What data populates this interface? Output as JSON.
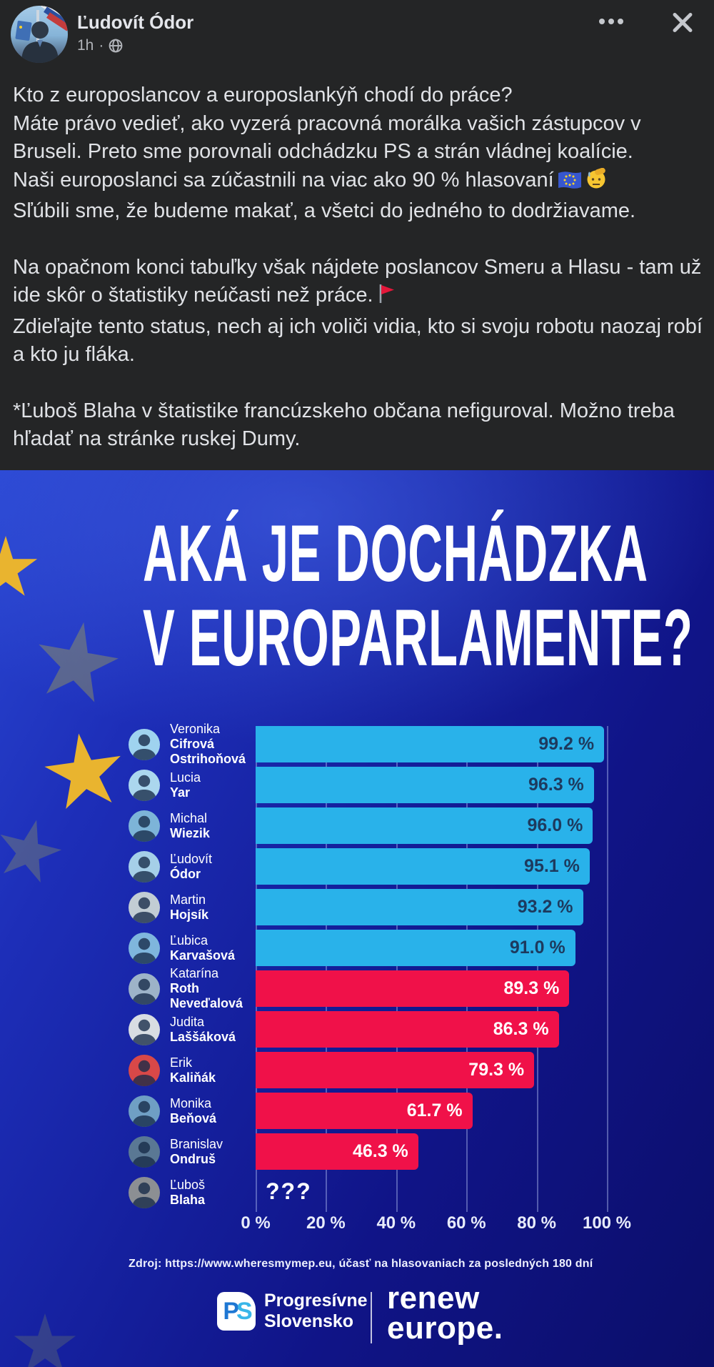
{
  "theme": {
    "fb_bg": "#242526",
    "fb_text": "#e0e2e6",
    "fb_secondary": "#b0b3b8",
    "graphic_navy": "#101487",
    "bar_blue": "#29b2ea",
    "bar_red": "#f01149",
    "label_on_blue": "#1d3a5e",
    "label_on_red": "#ffffff",
    "star_gold": "#e9b42f"
  },
  "post": {
    "author": "Ľudovít Ódor",
    "timestamp": "1h",
    "audience_icon": "globe-icon",
    "more_icon": "three-dots",
    "close_icon": "x-cross",
    "body": {
      "p1_l1": "Kto z europoslancov a europoslankýň chodí do práce?",
      "p1_l2": "Máte právo vedieť, ako vyzerá pracovná morálka vašich zástupcov v Bruseli. Preto sme porovnali odchádzku PS a strán vládnej koalície.",
      "p1_l3": "Naši europoslanci sa zúčastnili na viac ako 90 % hlasovaní",
      "p1_emojis": [
        "eu-flag-emoji",
        "saluting-face-emoji"
      ],
      "p1_l4": "Sľúbili sme, že budeme makať, a všetci do jedného to dodržiavame.",
      "p2_l1": "Na opačnom konci tabuľky však nájdete poslancov Smeru a Hlasu - tam už ide skôr o štatistiky neúčasti než práce.",
      "p2_emoji": "triangular-red-flag-emoji",
      "p2_l2": "Zdieľajte tento status, nech aj ich voliči vidia, kto si svoju robotu naozaj robí a kto ju fláka.",
      "p3": "*Ľuboš Blaha v štatistike francúzskeho občana nefiguroval. Možno treba hľadať na stránke ruskej Dumy."
    }
  },
  "graphic": {
    "title_line1": "AKÁ JE DOCHÁDZKA",
    "title_line2": "V EUROPARLAMENTE?",
    "source": "Zdroj: https://www.wheresmymep.eu, účasť na hlasovaniach za posledných 180 dní",
    "x_ticks": [
      "0 %",
      "20 %",
      "40 %",
      "60 %",
      "80 %",
      "100 %"
    ],
    "rows": [
      {
        "first": "Veronika",
        "last": "Cifrová Ostrihoňová",
        "value": 99.2,
        "label": "99.2 %",
        "group": "blue",
        "avatar_bg": "#9fd3ef"
      },
      {
        "first": "Lucia",
        "last": "Yar",
        "value": 96.3,
        "label": "96.3 %",
        "group": "blue",
        "avatar_bg": "#abd7ee"
      },
      {
        "first": "Michal",
        "last": "Wiezik",
        "value": 96.0,
        "label": "96.0 %",
        "group": "blue",
        "avatar_bg": "#7db4d8"
      },
      {
        "first": "Ľudovít",
        "last": "Ódor",
        "value": 95.1,
        "label": "95.1 %",
        "group": "blue",
        "avatar_bg": "#a5cfe8"
      },
      {
        "first": "Martin",
        "last": "Hojsík",
        "value": 93.2,
        "label": "93.2 %",
        "group": "blue",
        "avatar_bg": "#c2cdd4"
      },
      {
        "first": "Ľubica",
        "last": "Karvašová",
        "value": 91.0,
        "label": "91.0 %",
        "group": "blue",
        "avatar_bg": "#7fb6dd"
      },
      {
        "first": "Katarína",
        "last": "Roth Neveďalová",
        "value": 89.3,
        "label": "89.3 %",
        "group": "red",
        "avatar_bg": "#9db3c8"
      },
      {
        "first": "Judita",
        "last": "Laššáková",
        "value": 86.3,
        "label": "86.3 %",
        "group": "red",
        "avatar_bg": "#d8dde2"
      },
      {
        "first": "Erik",
        "last": "Kaliňák",
        "value": 79.3,
        "label": "79.3 %",
        "group": "red",
        "avatar_bg": "#d84848"
      },
      {
        "first": "Monika",
        "last": "Beňová",
        "value": 61.7,
        "label": "61.7 %",
        "group": "red",
        "avatar_bg": "#6f9fc4"
      },
      {
        "first": "Branislav",
        "last": "Ondruš",
        "value": 46.3,
        "label": "46.3 %",
        "group": "red",
        "avatar_bg": "#5a7894"
      },
      {
        "first": "Ľuboš",
        "last": "Blaha",
        "value": null,
        "label": "???",
        "group": "none",
        "avatar_bg": "#8c8f93"
      }
    ],
    "footer": {
      "ps_monogram_p": "P",
      "ps_monogram_s": "S",
      "ps_name_line1": "Progresívne",
      "ps_name_line2": "Slovensko",
      "renew_line1": "renew",
      "renew_line2": "europe."
    }
  },
  "chart_data": {
    "type": "bar",
    "orientation": "horizontal",
    "title": "AKÁ JE DOCHÁDZKA V EUROPARLAMENTE?",
    "categories": [
      "Veronika Cifrová Ostrihoňová",
      "Lucia Yar",
      "Michal Wiezik",
      "Ľudovít Ódor",
      "Martin Hojsík",
      "Ľubica Karvašová",
      "Katarína Roth Neveďalová",
      "Judita Laššáková",
      "Erik Kaliňák",
      "Monika Beňová",
      "Branislav Ondruš",
      "Ľuboš Blaha"
    ],
    "values": [
      99.2,
      96.3,
      96.0,
      95.1,
      93.2,
      91.0,
      89.3,
      86.3,
      79.3,
      61.7,
      46.3,
      null
    ],
    "value_labels": [
      "99.2 %",
      "96.3 %",
      "96.0 %",
      "95.1 %",
      "93.2 %",
      "91.0 %",
      "89.3 %",
      "86.3 %",
      "79.3 %",
      "61.7 %",
      "46.3 %",
      "???"
    ],
    "bar_colors": [
      "#29b2ea",
      "#29b2ea",
      "#29b2ea",
      "#29b2ea",
      "#29b2ea",
      "#29b2ea",
      "#f01149",
      "#f01149",
      "#f01149",
      "#f01149",
      "#f01149",
      "none"
    ],
    "xlabel": "",
    "ylabel": "",
    "xlim": [
      0,
      100
    ],
    "x_ticks": [
      "0 %",
      "20 %",
      "40 %",
      "60 %",
      "80 %",
      "100 %"
    ],
    "grid": "vertical",
    "legend": "none",
    "source": "Zdroj: https://www.wheresmymep.eu, účasť na hlasovaniach za posledných 180 dní"
  }
}
